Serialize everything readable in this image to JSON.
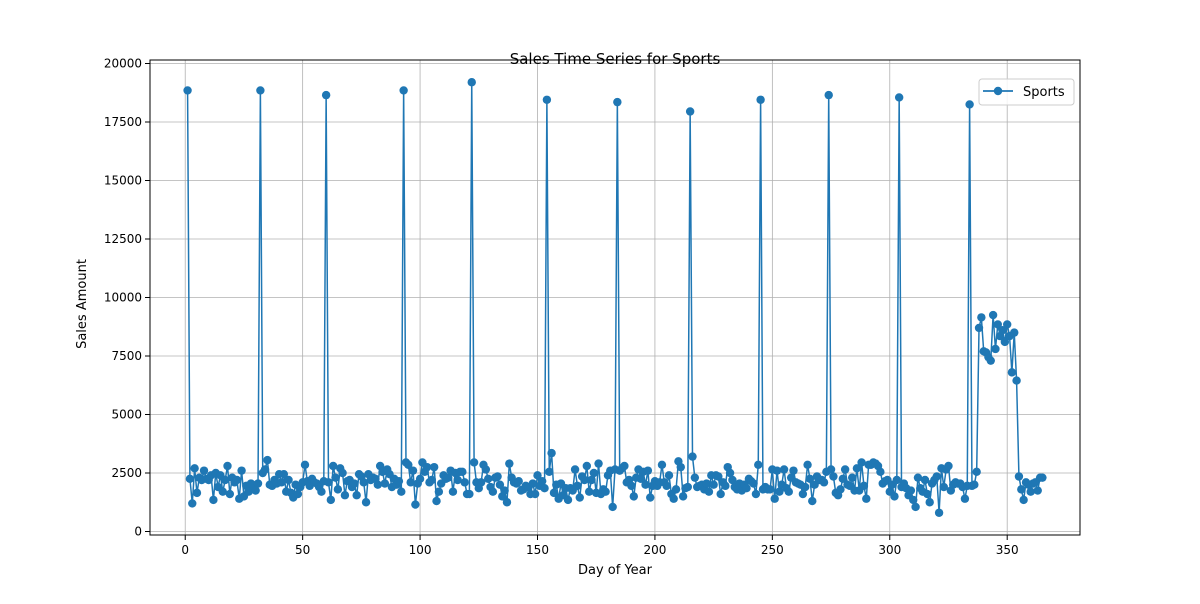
{
  "chart_data": {
    "type": "line",
    "title": "Sales Time Series for Sports",
    "xlabel": "Day of Year",
    "ylabel": "Sales Amount",
    "xlim": [
      -15,
      381
    ],
    "ylim": [
      -150,
      20150
    ],
    "xticks": [
      0,
      50,
      100,
      150,
      200,
      250,
      300,
      350
    ],
    "yticks": [
      0,
      2500,
      5000,
      7500,
      10000,
      12500,
      15000,
      17500,
      20000
    ],
    "grid": true,
    "legend_position": "top-right",
    "marker": "circle",
    "series": [
      {
        "name": "Sports",
        "color": "#1f77b4",
        "x": [
          1,
          2,
          3,
          4,
          5,
          6,
          7,
          8,
          9,
          10,
          11,
          12,
          13,
          14,
          15,
          16,
          17,
          18,
          19,
          20,
          21,
          22,
          23,
          24,
          25,
          26,
          27,
          28,
          29,
          30,
          31,
          32,
          33,
          34,
          35,
          36,
          37,
          38,
          39,
          40,
          41,
          42,
          43,
          44,
          45,
          46,
          47,
          48,
          49,
          50,
          51,
          52,
          53,
          54,
          55,
          56,
          57,
          58,
          59,
          60,
          61,
          62,
          63,
          64,
          65,
          66,
          67,
          68,
          69,
          70,
          71,
          72,
          73,
          74,
          75,
          76,
          77,
          78,
          79,
          80,
          81,
          82,
          83,
          84,
          85,
          86,
          87,
          88,
          89,
          90,
          91,
          92,
          93,
          94,
          95,
          96,
          97,
          98,
          99,
          100,
          101,
          102,
          103,
          104,
          105,
          106,
          107,
          108,
          109,
          110,
          111,
          112,
          113,
          114,
          115,
          116,
          117,
          118,
          119,
          120,
          121,
          122,
          123,
          124,
          125,
          126,
          127,
          128,
          129,
          130,
          131,
          132,
          133,
          134,
          135,
          136,
          137,
          138,
          139,
          140,
          141,
          142,
          143,
          144,
          145,
          146,
          147,
          148,
          149,
          150,
          151,
          152,
          153,
          154,
          155,
          156,
          157,
          158,
          159,
          160,
          161,
          162,
          163,
          164,
          165,
          166,
          167,
          168,
          169,
          170,
          171,
          172,
          173,
          174,
          175,
          176,
          177,
          178,
          179,
          180,
          181,
          182,
          183,
          184,
          185,
          186,
          187,
          188,
          189,
          190,
          191,
          192,
          193,
          194,
          195,
          196,
          197,
          198,
          199,
          200,
          201,
          202,
          203,
          204,
          205,
          206,
          207,
          208,
          209,
          210,
          211,
          212,
          213,
          214,
          215,
          216,
          217,
          218,
          219,
          220,
          221,
          222,
          223,
          224,
          225,
          226,
          227,
          228,
          229,
          230,
          231,
          232,
          233,
          234,
          235,
          236,
          237,
          238,
          239,
          240,
          241,
          242,
          243,
          244,
          245,
          246,
          247,
          248,
          249,
          250,
          251,
          252,
          253,
          254,
          255,
          256,
          257,
          258,
          259,
          260,
          261,
          262,
          263,
          264,
          265,
          266,
          267,
          268,
          269,
          270,
          271,
          272,
          273,
          274,
          275,
          276,
          277,
          278,
          279,
          280,
          281,
          282,
          283,
          284,
          285,
          286,
          287,
          288,
          289,
          290,
          291,
          292,
          293,
          294,
          295,
          296,
          297,
          298,
          299,
          300,
          301,
          302,
          303,
          304,
          305,
          306,
          307,
          308,
          309,
          310,
          311,
          312,
          313,
          314,
          315,
          316,
          317,
          318,
          319,
          320,
          321,
          322,
          323,
          324,
          325,
          326,
          327,
          328,
          329,
          330,
          331,
          332,
          333,
          334,
          335,
          336,
          337,
          338,
          339,
          340,
          341,
          342,
          343,
          344,
          345,
          346,
          347,
          348,
          349,
          350,
          351,
          352,
          353,
          354,
          355,
          356,
          357,
          358,
          359,
          360,
          361,
          362,
          363,
          364,
          365
        ],
        "y": [
          18850,
          2250,
          1200,
          2700,
          1650,
          2300,
          2200,
          2600,
          2250,
          2200,
          2400,
          1350,
          2500,
          1900,
          2400,
          1700,
          2200,
          2800,
          1600,
          2300,
          2100,
          2200,
          1400,
          2600,
          1500,
          1950,
          1700,
          2050,
          1850,
          1750,
          2050,
          18850,
          2500,
          2650,
          3050,
          2000,
          1950,
          2200,
          2050,
          2450,
          2100,
          2450,
          1700,
          2200,
          1650,
          1450,
          2000,
          1600,
          1900,
          2100,
          2850,
          2150,
          1950,
          2250,
          2100,
          2050,
          1900,
          1700,
          2150,
          18650,
          2100,
          1350,
          2800,
          2300,
          1800,
          2700,
          2500,
          1550,
          2150,
          2200,
          1900,
          2050,
          1550,
          2450,
          2350,
          2100,
          1250,
          2450,
          2200,
          2300,
          2250,
          2000,
          2800,
          2550,
          2050,
          2650,
          2450,
          1900,
          2250,
          2000,
          2150,
          1700,
          18850,
          2950,
          2850,
          2100,
          2600,
          1150,
          2050,
          2250,
          2950,
          2550,
          2750,
          2100,
          2200,
          2750,
          1300,
          1700,
          2050,
          2400,
          2250,
          2300,
          2600,
          1700,
          2500,
          2200,
          2550,
          2550,
          2100,
          1600,
          1600,
          19200,
          2950,
          2100,
          1850,
          2100,
          2850,
          2650,
          2250,
          1900,
          1700,
          2300,
          2350,
          2000,
          1500,
          1750,
          1250,
          2900,
          2300,
          2100,
          2050,
          2150,
          1750,
          1800,
          1950,
          1900,
          1600,
          2050,
          1600,
          2400,
          1950,
          2150,
          1850,
          18450,
          2550,
          3350,
          1650,
          2000,
          1400,
          2050,
          1550,
          1850,
          1350,
          1850,
          1750,
          2650,
          1950,
          1450,
          2350,
          2200,
          2800,
          1700,
          2200,
          2500,
          1650,
          2900,
          1600,
          1800,
          1700,
          2400,
          2600,
          1050,
          2650,
          18350,
          2600,
          2700,
          2800,
          2100,
          2200,
          1950,
          1500,
          2300,
          2650,
          2250,
          2550,
          2000,
          2600,
          1450,
          1950,
          2150,
          1950,
          2100,
          2850,
          2100,
          1950,
          2400,
          1600,
          1400,
          1800,
          3000,
          2750,
          1500,
          1850,
          1900,
          17950,
          3200,
          2300,
          1900,
          1950,
          2000,
          1800,
          2050,
          1700,
          2400,
          2000,
          2400,
          2350,
          1600,
          2100,
          1950,
          2750,
          2500,
          2200,
          1900,
          1800,
          2050,
          1750,
          2000,
          1850,
          2250,
          2150,
          2050,
          1600,
          2850,
          18450,
          1800,
          1900,
          1800,
          1800,
          2650,
          1400,
          2600,
          1700,
          2000,
          2650,
          1850,
          1700,
          2300,
          2600,
          2100,
          2050,
          2000,
          1600,
          1900,
          2850,
          2250,
          1300,
          2000,
          2350,
          2200,
          2200,
          2100,
          2550,
          18650,
          2650,
          2350,
          1650,
          1550,
          1800,
          2250,
          2650,
          2000,
          1950,
          2300,
          1750,
          2700,
          1750,
          2950,
          1950,
          1400,
          2850,
          2850,
          2950,
          2900,
          2800,
          2550,
          2050,
          2150,
          2200,
          1700,
          2000,
          1500,
          2200,
          18550,
          1900,
          2050,
          1850,
          1550,
          1750,
          1350,
          1050,
          2300,
          1850,
          1700,
          2200,
          1600,
          1250,
          2050,
          2200,
          2350,
          800,
          2700,
          1900,
          2650,
          2800,
          1750,
          2000,
          2100,
          2050,
          2050,
          1900,
          1400,
          1950,
          18250,
          1950,
          2000,
          2550,
          8700,
          9150,
          7700,
          7650,
          7450,
          7300,
          9250,
          7800,
          8850,
          8350,
          8600,
          8100,
          8850,
          8350,
          6800,
          8500,
          6450,
          2350,
          1800,
          1350,
          2100,
          2000,
          1700,
          2050,
          2100,
          1750,
          2300,
          2300
        ]
      }
    ]
  }
}
